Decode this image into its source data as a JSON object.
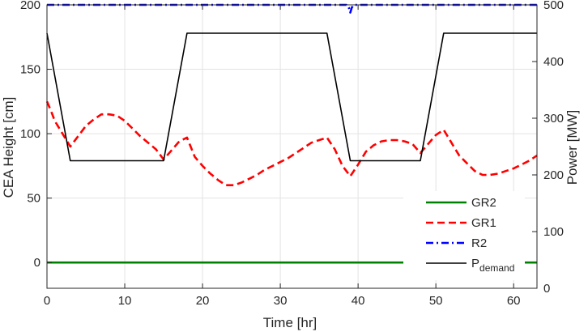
{
  "chart_data": {
    "type": "line",
    "xlabel": "Time [hr]",
    "ylabel_left": "CEA Height [cm]",
    "ylabel_right": "Power [MW]",
    "xlim": [
      0,
      63
    ],
    "ylim_left": [
      -20,
      200
    ],
    "ylim_right": [
      0,
      500
    ],
    "xticks": [
      "0",
      "10",
      "20",
      "30",
      "40",
      "50",
      "60"
    ],
    "yticks_left": [
      "0",
      "50",
      "100",
      "150",
      "200"
    ],
    "yticks_right": [
      "0",
      "100",
      "200",
      "300",
      "400",
      "500"
    ],
    "grid": true,
    "legend_position": "bottom-right",
    "series": [
      {
        "name": "GR2",
        "axis": "left",
        "color": "#008000",
        "style": "solid",
        "x": [
          0,
          63
        ],
        "y": [
          0,
          0
        ]
      },
      {
        "name": "GR1",
        "axis": "left",
        "color": "#ff0000",
        "style": "dashed",
        "x": [
          0,
          0.5,
          1,
          2,
          3,
          4,
          5,
          6,
          7,
          8,
          9,
          10,
          11,
          12,
          13,
          14,
          15,
          16,
          17,
          18,
          19,
          20,
          21,
          22,
          23,
          24,
          25,
          26,
          27,
          28,
          29,
          30,
          31,
          32,
          33,
          34,
          35,
          36,
          37,
          38,
          39,
          40,
          41,
          42,
          43,
          44,
          45,
          46,
          47,
          48,
          49,
          50,
          51,
          52,
          53,
          54,
          55,
          56,
          57,
          58,
          59,
          60,
          61,
          62,
          63
        ],
        "y": [
          125,
          118,
          110,
          100,
          90,
          98,
          106,
          111,
          115,
          115,
          114,
          110,
          104,
          98,
          93,
          88,
          80,
          87,
          94,
          97,
          82,
          75,
          69,
          64,
          60,
          60,
          62,
          65,
          68,
          72,
          75,
          78,
          81,
          85,
          89,
          93,
          95,
          97,
          88,
          75,
          67,
          76,
          86,
          91,
          94,
          95,
          95,
          94,
          92,
          85,
          92,
          99,
          103,
          93,
          83,
          77,
          71,
          68,
          68,
          69,
          71,
          73,
          76,
          79,
          83
        ]
      },
      {
        "name": "R2",
        "axis": "left",
        "color": "#0000ff",
        "style": "dashdot",
        "x": [
          0,
          38.5,
          38.8,
          39.0,
          39.2,
          39.5,
          63
        ],
        "y": [
          200,
          200,
          198,
          194,
          198,
          200,
          200
        ]
      },
      {
        "name": "Pdemand",
        "axis": "right",
        "color": "#000000",
        "style": "solid",
        "x": [
          0,
          3,
          15,
          18,
          36,
          39,
          48,
          51,
          63
        ],
        "y": [
          450,
          225,
          225,
          450,
          450,
          225,
          225,
          450,
          450
        ]
      }
    ],
    "legend": {
      "entries": [
        {
          "label": "GR2",
          "sub": ""
        },
        {
          "label": "GR1",
          "sub": ""
        },
        {
          "label": "R2",
          "sub": ""
        },
        {
          "label": "P",
          "sub": "demand"
        }
      ]
    }
  }
}
